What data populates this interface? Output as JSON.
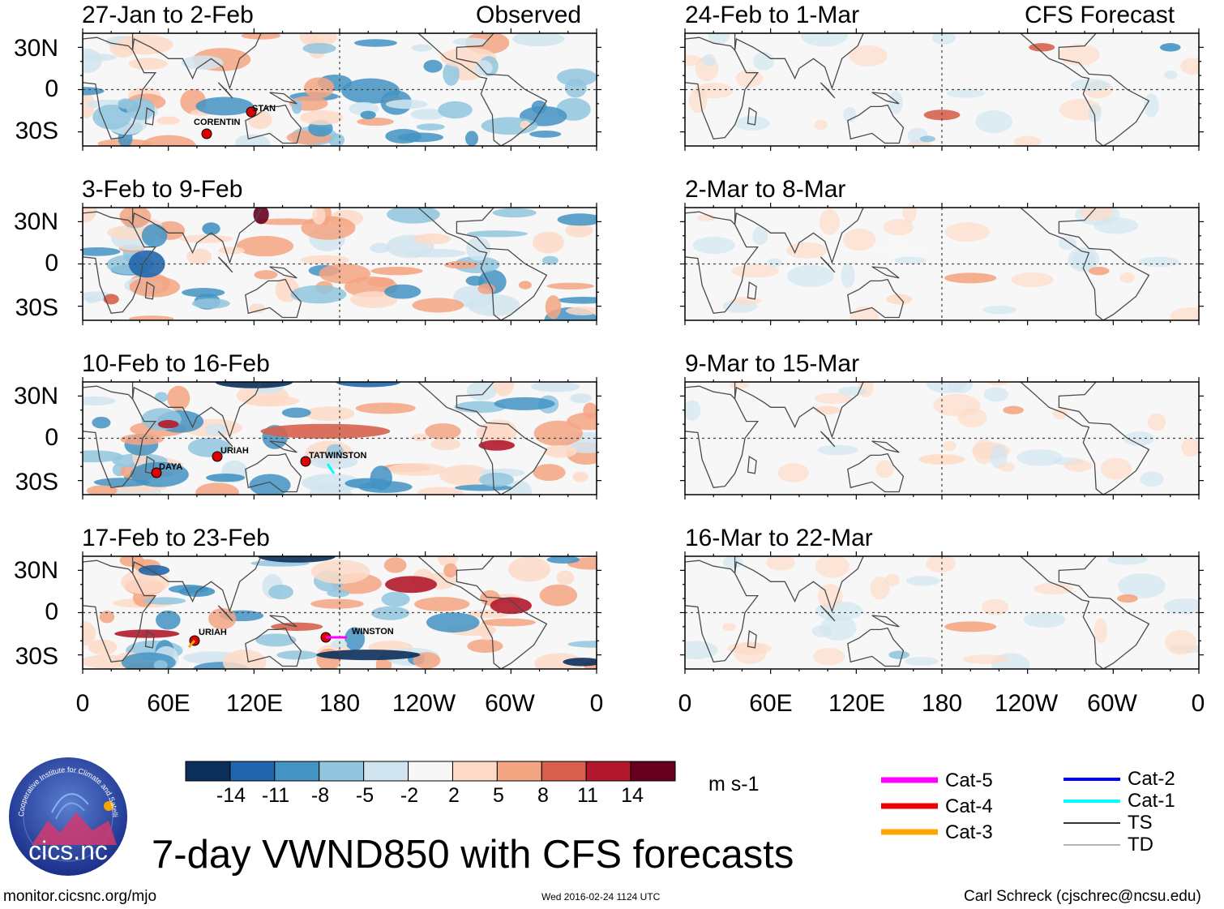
{
  "title": "7-day VWND850 with CFS forecasts",
  "observed_label": "Observed",
  "forecast_label": "CFS Forecast",
  "lat_labels": [
    "30N",
    "0",
    "30S"
  ],
  "lon_labels": [
    "0",
    "60E",
    "120E",
    "180",
    "120W",
    "60W",
    "0"
  ],
  "panels_observed": [
    {
      "period": "27-Jan to 2-Feb",
      "storms": [
        "STAN",
        "CORENTIN"
      ]
    },
    {
      "period": "3-Feb to 9-Feb",
      "storms": []
    },
    {
      "period": "10-Feb to 16-Feb",
      "storms": [
        "URIAH",
        "TATWINSTON",
        "DAYA"
      ]
    },
    {
      "period": "17-Feb to 23-Feb",
      "storms": [
        "URIAH",
        "WINSTON"
      ]
    }
  ],
  "panels_forecast": [
    {
      "period": "24-Feb to 1-Mar"
    },
    {
      "period": "2-Mar to 8-Mar"
    },
    {
      "period": "9-Mar to 15-Mar"
    },
    {
      "period": "16-Mar to 22-Mar"
    }
  ],
  "colorbar": {
    "ticks": [
      "-14",
      "-11",
      "-8",
      "-5",
      "-2",
      "2",
      "5",
      "8",
      "11",
      "14"
    ],
    "colors": [
      "#0b2f5b",
      "#2166ac",
      "#4393c3",
      "#92c5de",
      "#d1e5f0",
      "#f7f7f7",
      "#fddbc7",
      "#f4a582",
      "#d6604d",
      "#b2182b",
      "#67001f"
    ],
    "units": "m s-1"
  },
  "legend": [
    {
      "label": "Cat-5",
      "color": "#ff00ff"
    },
    {
      "label": "Cat-4",
      "color": "#ee0000"
    },
    {
      "label": "Cat-3",
      "color": "#ffa500"
    },
    {
      "label": "Cat-2",
      "color": "#0000ff"
    },
    {
      "label": "Cat-1",
      "color": "#00ffff"
    },
    {
      "label": "TS",
      "color": "#333333"
    },
    {
      "label": "TD",
      "color": "#888888"
    }
  ],
  "logo_text": "cics.nc",
  "logo_ring_text": "Cooperative Institute for Climate and Satellites",
  "footer": {
    "url": "monitor.cicsnc.org/mjo",
    "timestamp": "Wed 2016-02-24 1124 UTC",
    "author": "Carl Schreck (cjschrec@ncsu.edu)"
  }
}
